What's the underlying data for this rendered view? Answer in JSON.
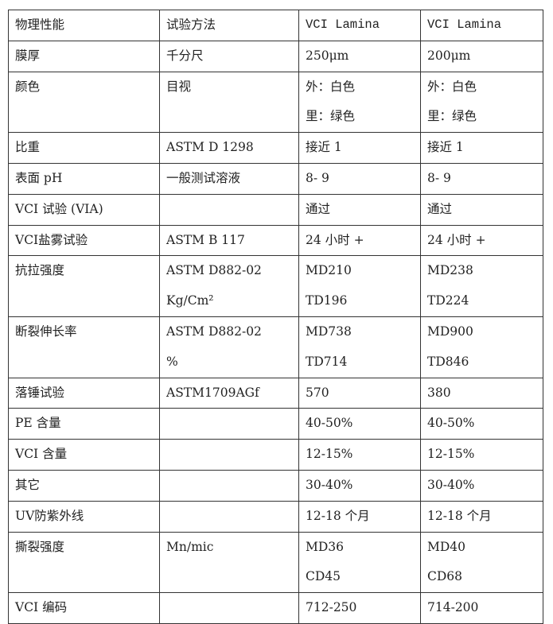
{
  "table": {
    "header": [
      "物理性能",
      "试验方法",
      "VCI Lamina",
      "VCI Lamina"
    ],
    "rows": [
      {
        "property": "膜厚",
        "method": [
          "千分尺"
        ],
        "v1": [
          "250μm"
        ],
        "v2": [
          "200μm"
        ]
      },
      {
        "property": "颜色",
        "method": [
          "目视"
        ],
        "v1": [
          "外：白色",
          "里：绿色"
        ],
        "v2": [
          "外：白色",
          "里：绿色"
        ]
      },
      {
        "property": "比重",
        "method": [
          "ASTM D 1298"
        ],
        "v1": [
          "接近 1"
        ],
        "v2": [
          "接近 1"
        ]
      },
      {
        "property": "表面 pH",
        "method": [
          "一般测试溶液"
        ],
        "v1": [
          "8- 9"
        ],
        "v2": [
          "8- 9"
        ]
      },
      {
        "property": " VCI 试验 (VIA)",
        "method": [
          ""
        ],
        "v1": [
          "通过"
        ],
        "v2": [
          "通过"
        ]
      },
      {
        "property": " VCI盐雾试验",
        "method": [
          "ASTM B 117"
        ],
        "v1": [
          "24 小时 +"
        ],
        "v2": [
          "24 小时 +"
        ]
      },
      {
        "property": "抗拉强度",
        "method": [
          "ASTM D882-02",
          "Kg/Cm²"
        ],
        "v1": [
          "MD210",
          "TD196"
        ],
        "v2": [
          "MD238",
          "TD224"
        ]
      },
      {
        "property": "断裂伸长率",
        "method": [
          "ASTM D882-02",
          "%"
        ],
        "v1": [
          "MD738",
          "TD714"
        ],
        "v2": [
          "MD900",
          "TD846"
        ]
      },
      {
        "property": "落锤试验",
        "method": [
          "ASTM1709AGf"
        ],
        "v1": [
          "570"
        ],
        "v2": [
          "380"
        ]
      },
      {
        "property": "PE 含量",
        "method": [
          ""
        ],
        "v1": [
          "40-50%"
        ],
        "v2": [
          "40-50%"
        ]
      },
      {
        "property": "VCI 含量",
        "method": [
          ""
        ],
        "v1": [
          "12-15%"
        ],
        "v2": [
          "12-15%"
        ]
      },
      {
        "property": "其它",
        "method": [
          ""
        ],
        "v1": [
          "30-40%"
        ],
        "v2": [
          "30-40%"
        ]
      },
      {
        "property": "UV防紫外线",
        "method": [
          ""
        ],
        "v1": [
          "12-18 个月"
        ],
        "v2": [
          "12-18 个月"
        ]
      },
      {
        "property": "撕裂强度",
        "method": [
          "Mn/mic"
        ],
        "v1": [
          "MD36",
          "CD45"
        ],
        "v2": [
          "MD40",
          "CD68"
        ]
      },
      {
        "property": "VCI 编码",
        "method": [
          ""
        ],
        "v1": [
          "712-250"
        ],
        "v2": [
          "714-200"
        ]
      }
    ]
  }
}
